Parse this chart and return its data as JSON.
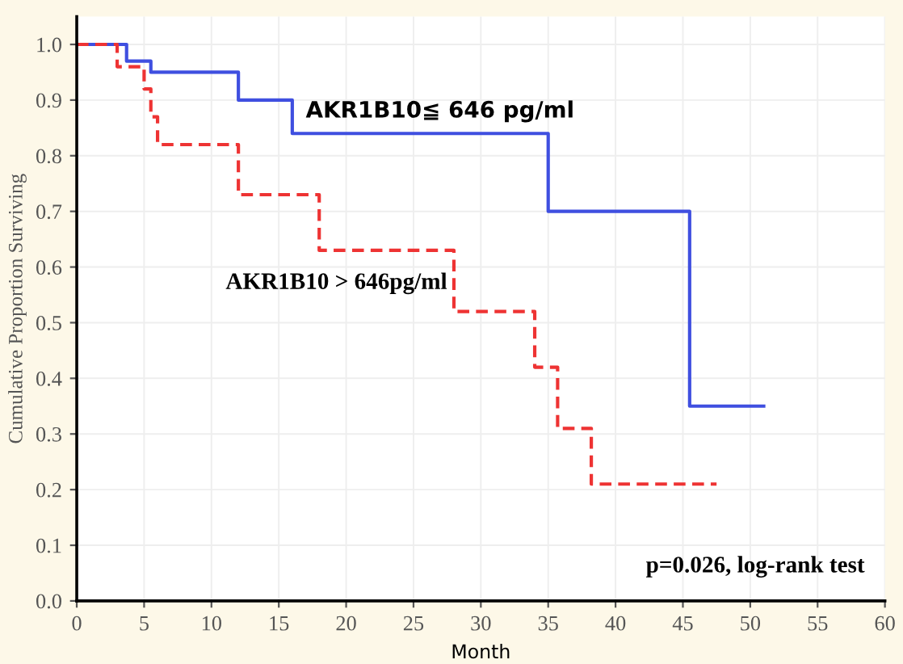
{
  "chart_data": {
    "type": "step",
    "xlabel": "Month",
    "ylabel": "Cumulative Proportion Surviving",
    "series": [
      {
        "name": "AKR1B10≦ 646 pg/ml",
        "color": "#3f4fe0",
        "line_style": "solid",
        "x": [
          0,
          3.7,
          5.5,
          12,
          16,
          35,
          45.5,
          51
        ],
        "values": [
          1.0,
          0.97,
          0.95,
          0.9,
          0.84,
          0.7,
          0.35,
          0.35
        ]
      },
      {
        "name": "AKR1B10 > 646pg/ml",
        "color": "#ee3333",
        "line_style": "dashed",
        "x": [
          0,
          3,
          5,
          5.5,
          6,
          12,
          18,
          28,
          34,
          35.7,
          38.2,
          47.5
        ],
        "values": [
          1.0,
          0.96,
          0.92,
          0.87,
          0.82,
          0.73,
          0.63,
          0.52,
          0.42,
          0.31,
          0.21,
          0.21
        ]
      }
    ],
    "xlim": [
      0,
      60
    ],
    "xticks": [
      0,
      5,
      10,
      15,
      20,
      25,
      30,
      35,
      40,
      45,
      50,
      55,
      60
    ],
    "ylim": [
      0,
      1.05
    ],
    "yticks": [
      {
        "value": 0,
        "label": "0.0"
      },
      0.1,
      0.2,
      0.3,
      0.4,
      0.5,
      0.6,
      0.7,
      0.8,
      0.9,
      {
        "value": 1,
        "label": "1.0"
      }
    ],
    "grid": true,
    "legend": false,
    "annotations": [
      "p=0.026, log-rank test"
    ]
  }
}
